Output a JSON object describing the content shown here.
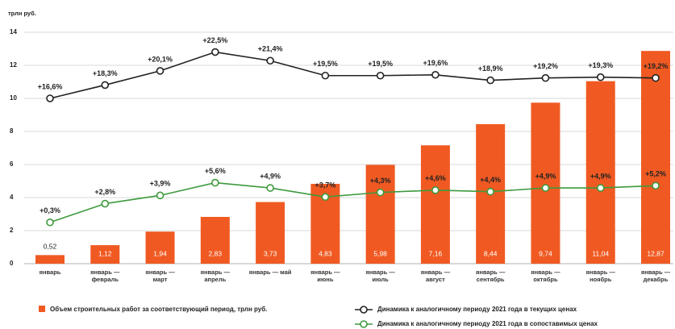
{
  "chart_data": {
    "type": "bar",
    "y_axis_label": "трлн руб.",
    "categories": [
      "январь",
      "январь — февраль",
      "январь — март",
      "январь — апрель",
      "январь — май",
      "январь — июнь",
      "январь — июль",
      "январь — август",
      "январь — сентябрь",
      "январь — октябрь",
      "январь — ноябрь",
      "январь — декабрь"
    ],
    "ylim": [
      0,
      14
    ],
    "yticks": [
      0,
      2,
      4,
      6,
      8,
      10,
      12,
      14
    ],
    "grid": true,
    "bars": {
      "name": "Объем строительных работ за соответствующий период, трлн руб.",
      "color": "#f05a22",
      "values": [
        0.52,
        1.12,
        1.94,
        2.83,
        3.73,
        4.83,
        5.98,
        7.16,
        8.44,
        9.74,
        11.04,
        12.87
      ],
      "value_labels": [
        "0,52",
        "1,12",
        "1,94",
        "2,83",
        "3,73",
        "4,83",
        "5,98",
        "7,16",
        "8,44",
        "9,74",
        "11,04",
        "12,87"
      ]
    },
    "series": [
      {
        "name": "Динамика к аналогичному периоду 2021 года в текущих ценах",
        "color": "#222222",
        "axis": "y2",
        "values": [
          16.6,
          18.3,
          20.1,
          22.5,
          21.4,
          19.5,
          19.5,
          19.6,
          18.9,
          19.2,
          19.3,
          19.2
        ],
        "value_labels": [
          "+16,6%",
          "+18,3%",
          "+20,1%",
          "+22,5%",
          "+21,4%",
          "+19,5%",
          "+19,5%",
          "+19,6%",
          "+18,9%",
          "+19,2%",
          "+19,3%",
          "+19,2%"
        ]
      },
      {
        "name": "Динамика к аналогичному периоду 2021 года в сопоставимых ценах",
        "color": "#3d9a3d",
        "axis": "y3",
        "values": [
          0.3,
          2.8,
          3.9,
          5.6,
          4.9,
          3.7,
          4.3,
          4.6,
          4.4,
          4.9,
          4.9,
          5.2
        ],
        "value_labels": [
          "+0,3%",
          "+2,8%",
          "+3,9%",
          "+5,6%",
          "+4,9%",
          "+3,7%",
          "+4,3%",
          "+4,6%",
          "+4,4%",
          "+4,9%",
          "+4,9%",
          "+5,2%"
        ]
      }
    ],
    "y2lim": [
      -4.45,
      25.02
    ],
    "y3lim": [
      -5.22,
      25.7
    ]
  }
}
